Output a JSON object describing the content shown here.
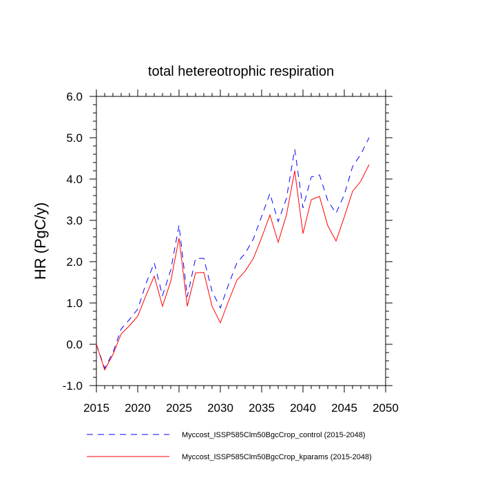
{
  "chart_data": {
    "type": "line",
    "title": "total hetereotrophic respiration",
    "xlabel": "",
    "ylabel": "HR  (PgC/y)",
    "xlim": [
      2015,
      2050
    ],
    "ylim": [
      -1.0,
      6.0
    ],
    "x_ticks": [
      "2015",
      "2020",
      "2025",
      "2030",
      "2035",
      "2040",
      "2045",
      "2050"
    ],
    "y_ticks": [
      "-1.0",
      "0.0",
      "1.0",
      "2.0",
      "3.0",
      "4.0",
      "5.0",
      "6.0"
    ],
    "grid": false,
    "legend_position": "bottom",
    "x": [
      2015,
      2016,
      2017,
      2018,
      2019,
      2020,
      2021,
      2022,
      2023,
      2024,
      2025,
      2026,
      2027,
      2028,
      2029,
      2030,
      2031,
      2032,
      2033,
      2034,
      2035,
      2036,
      2037,
      2038,
      2039,
      2040,
      2041,
      2042,
      2043,
      2044,
      2045,
      2046,
      2047,
      2048
    ],
    "series": [
      {
        "name": "Myccost_ISSP585Clm50BgcCrop_control (2015-2048)",
        "color": "#0000ff",
        "dash": "dashed",
        "values": [
          0.0,
          -0.58,
          -0.2,
          0.37,
          0.6,
          0.85,
          1.47,
          1.97,
          1.18,
          1.8,
          2.88,
          1.15,
          2.08,
          2.08,
          1.28,
          0.88,
          1.45,
          1.97,
          2.2,
          2.55,
          3.1,
          3.65,
          2.97,
          3.53,
          4.72,
          3.3,
          4.05,
          4.1,
          3.48,
          3.17,
          3.62,
          4.3,
          4.6,
          5.0
        ]
      },
      {
        "name": "Myccost_ISSP585Clm50BgcCrop_kparams (2015-2048)",
        "color": "#ff0000",
        "dash": "solid",
        "values": [
          0.0,
          -0.62,
          -0.25,
          0.25,
          0.45,
          0.68,
          1.18,
          1.65,
          0.92,
          1.53,
          2.57,
          0.92,
          1.73,
          1.74,
          0.92,
          0.52,
          1.05,
          1.55,
          1.77,
          2.08,
          2.58,
          3.13,
          2.47,
          3.13,
          4.2,
          2.68,
          3.5,
          3.58,
          2.87,
          2.5,
          3.08,
          3.7,
          3.95,
          4.35
        ]
      }
    ]
  }
}
